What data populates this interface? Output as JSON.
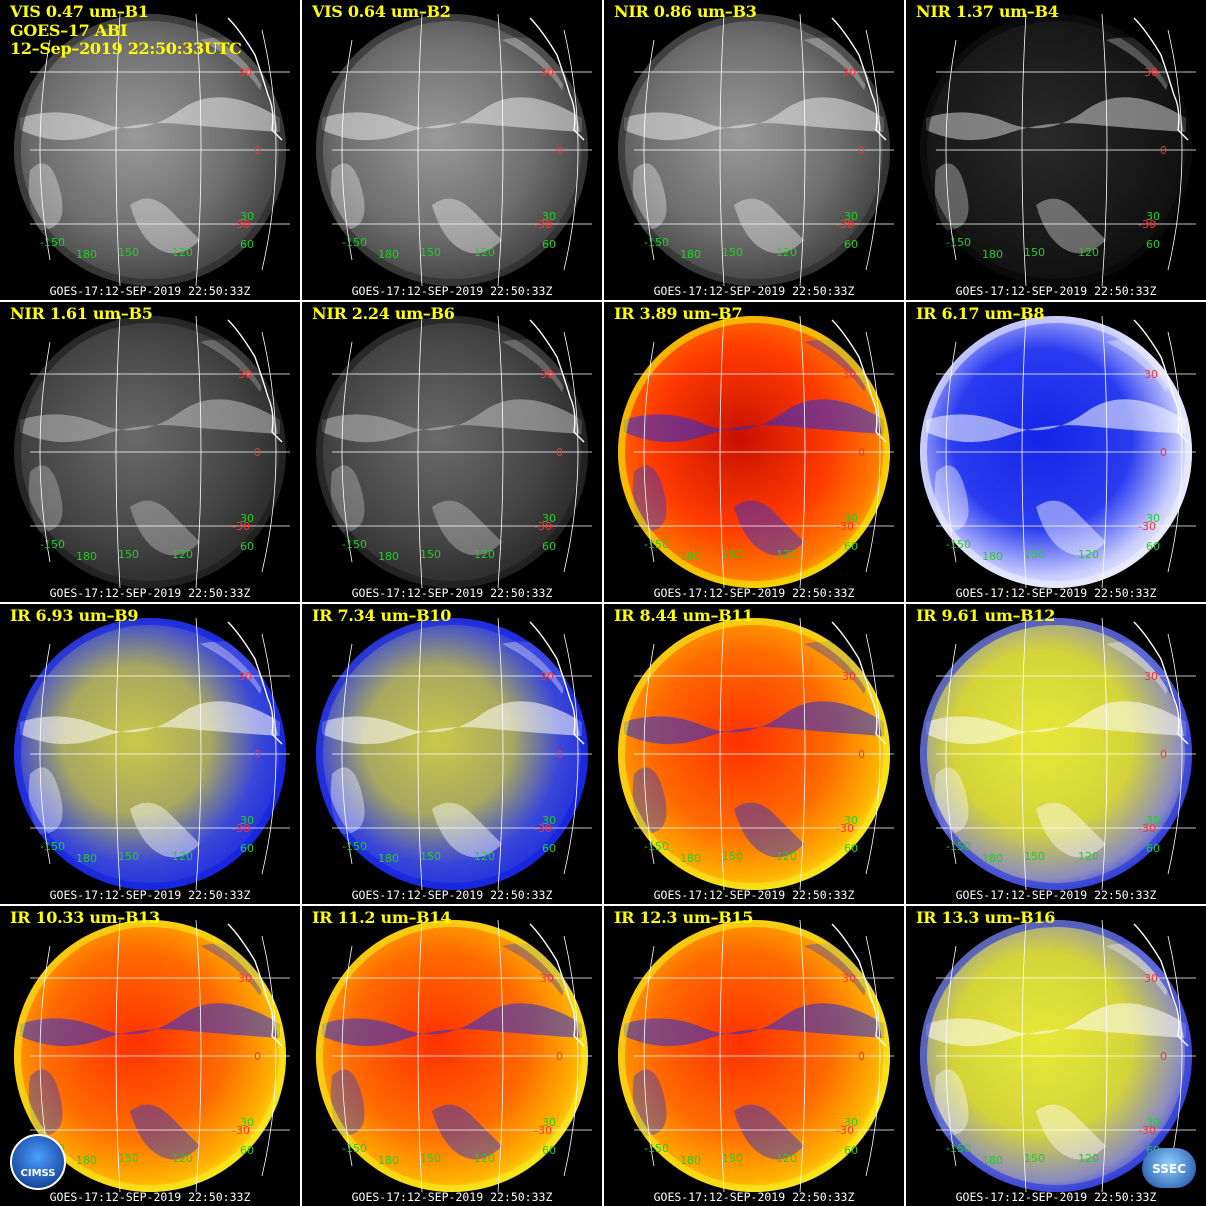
{
  "header": {
    "line1": "VIS 0.47 um–B1",
    "line2": "GOES–17 ABI",
    "line3": "12–Sep–2019 22:50:33UTC"
  },
  "footer_text": "GOES-17:12-SEP-2019 22:50:33Z",
  "panels": [
    {
      "title": "VIS 0.47 um–B1",
      "palette": "gray"
    },
    {
      "title": "VIS 0.64 um–B2",
      "palette": "gray"
    },
    {
      "title": "NIR 0.86 um–B3",
      "palette": "gray"
    },
    {
      "title": "NIR 1.37 um–B4",
      "palette": "dark"
    },
    {
      "title": "NIR 1.61 um–B5",
      "palette": "darkgray"
    },
    {
      "title": "NIR 2.24 um–B6",
      "palette": "darkgray"
    },
    {
      "title": "IR 3.89 um–B7",
      "palette": "red"
    },
    {
      "title": "IR 6.17 um–B8",
      "palette": "bluewhite"
    },
    {
      "title": "IR 6.93 um–B9",
      "palette": "blueyellow"
    },
    {
      "title": "IR 7.34 um–B10",
      "palette": "blueyellow"
    },
    {
      "title": "IR 8.44 um–B11",
      "palette": "orange"
    },
    {
      "title": "IR 9.61 um–B12",
      "palette": "yellowblue"
    },
    {
      "title": "IR 10.33 um–B13",
      "palette": "orange"
    },
    {
      "title": "IR 11.2 um–B14",
      "palette": "orange"
    },
    {
      "title": "IR 12.3 um–B15",
      "palette": "orange"
    },
    {
      "title": "IR 13.3 um–B16",
      "palette": "yellowblue"
    }
  ],
  "lat_labels": [
    "30",
    "0",
    "-30"
  ],
  "lon_labels": [
    "-150",
    "180",
    "150",
    "120",
    "60",
    "30"
  ],
  "label_colors": {
    "lat": "#ff3030",
    "lon": "#20d020"
  },
  "logos": {
    "left": "CIMSS",
    "right": "SSEC"
  }
}
